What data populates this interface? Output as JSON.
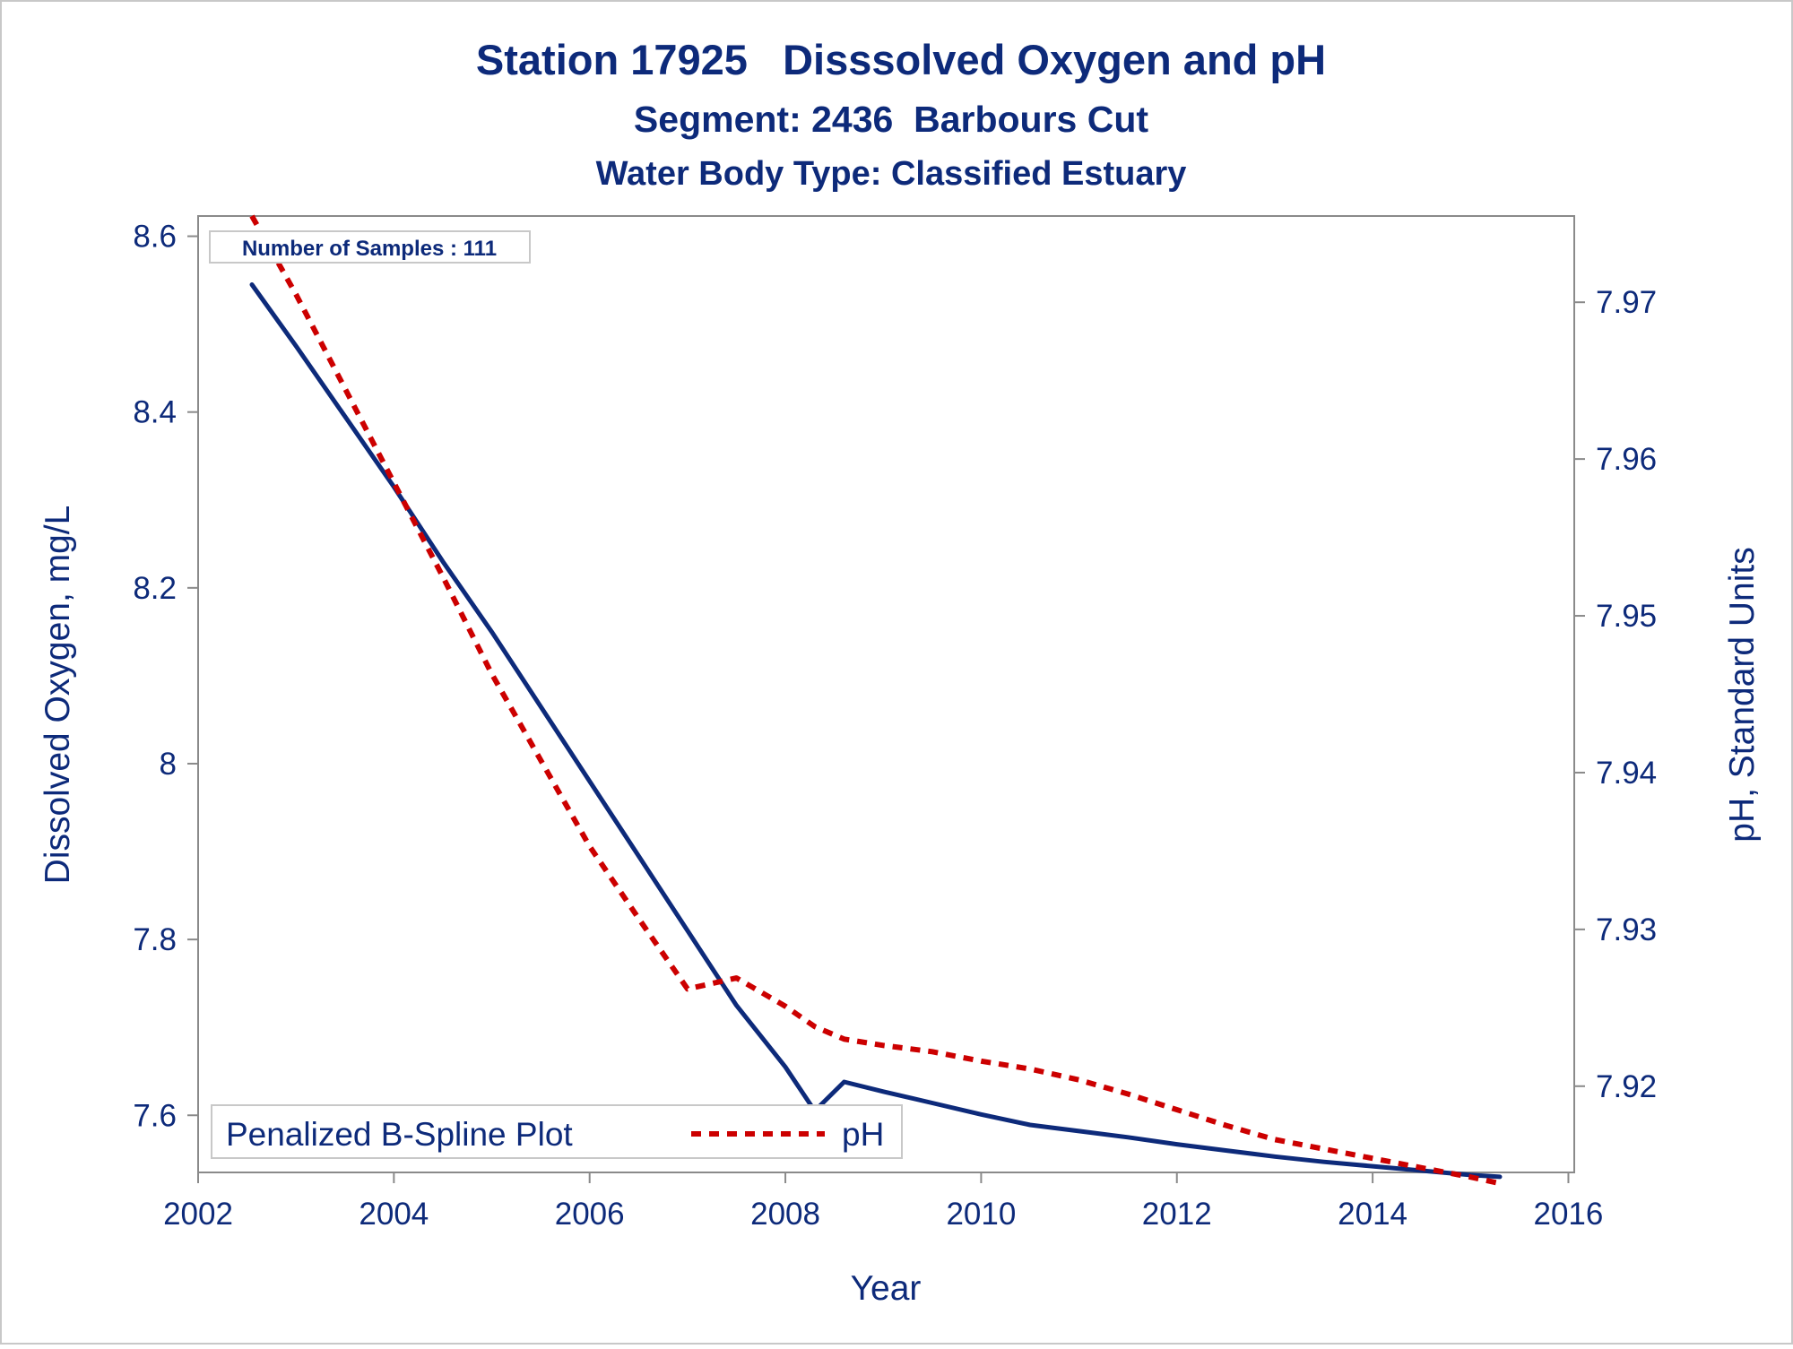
{
  "chart_data": {
    "type": "line",
    "title": "Station 17925   Disssolved Oxygen and pH",
    "subtitle": "Segment: 2436  Barbours Cut",
    "subtitle2": "Water Body Type: Classified Estuary",
    "xlabel": "Year",
    "ylabel": "Dissolved Oxygen, mg/L",
    "y2label": "pH, Standard Units",
    "xlim": [
      2002,
      2016.06
    ],
    "ylim": [
      7.535,
      8.623
    ],
    "y2lim": [
      7.9145,
      7.9755
    ],
    "x_ticks": [
      2002,
      2004,
      2006,
      2008,
      2010,
      2012,
      2014,
      2016
    ],
    "y_ticks": [
      7.6,
      7.8,
      8,
      8.2,
      8.4,
      8.6
    ],
    "y_tick_labels": [
      "7.6",
      "7.8",
      "8",
      "8.2",
      "8.4",
      "8.6"
    ],
    "y2_ticks": [
      7.92,
      7.93,
      7.94,
      7.95,
      7.96,
      7.97
    ],
    "y2_tick_labels": [
      "7.92",
      "7.93",
      "7.94",
      "7.95",
      "7.96",
      "7.97"
    ],
    "grid": false,
    "inset_text": "Number of Samples : 111",
    "legend": {
      "position": "bottom-left",
      "title": "Penalized B-Spline Plot",
      "entries": [
        "pH"
      ]
    },
    "series": [
      {
        "name": "Dissolved Oxygen",
        "axis": "left",
        "color": "#0d2a7a",
        "style": "solid",
        "x": [
          2002.55,
          2003,
          2003.5,
          2004,
          2004.5,
          2005,
          2005.5,
          2006,
          2006.5,
          2007,
          2007.5,
          2008,
          2008.3,
          2008.6,
          2009,
          2009.5,
          2010,
          2010.5,
          2011,
          2011.5,
          2012,
          2012.5,
          2013,
          2013.5,
          2014,
          2014.5,
          2015,
          2015.3
        ],
        "y": [
          8.545,
          8.475,
          8.395,
          8.315,
          8.23,
          8.15,
          8.065,
          7.98,
          7.895,
          7.81,
          7.725,
          7.655,
          7.605,
          7.638,
          7.627,
          7.614,
          7.601,
          7.589,
          7.582,
          7.575,
          7.567,
          7.56,
          7.553,
          7.547,
          7.542,
          7.537,
          7.532,
          7.53
        ]
      },
      {
        "name": "pH",
        "axis": "right",
        "color": "#cc0000",
        "style": "dashed",
        "x": [
          2002.55,
          2003,
          2003.5,
          2004,
          2004.5,
          2005,
          2005.5,
          2006,
          2006.5,
          2007,
          2007.5,
          2008,
          2008.3,
          2008.6,
          2009,
          2009.5,
          2010,
          2010.5,
          2011,
          2011.5,
          2012,
          2012.5,
          2013,
          2013.5,
          2014,
          2014.5,
          2015,
          2015.3
        ],
        "y": [
          7.9755,
          7.9705,
          7.9645,
          7.9585,
          7.9525,
          7.9463,
          7.9408,
          7.9353,
          7.9307,
          7.9262,
          7.9269,
          7.9251,
          7.9238,
          7.923,
          7.9226,
          7.9222,
          7.9216,
          7.9211,
          7.9204,
          7.9195,
          7.9185,
          7.9175,
          7.9166,
          7.916,
          7.9154,
          7.9148,
          7.9142,
          7.9138
        ]
      }
    ]
  }
}
